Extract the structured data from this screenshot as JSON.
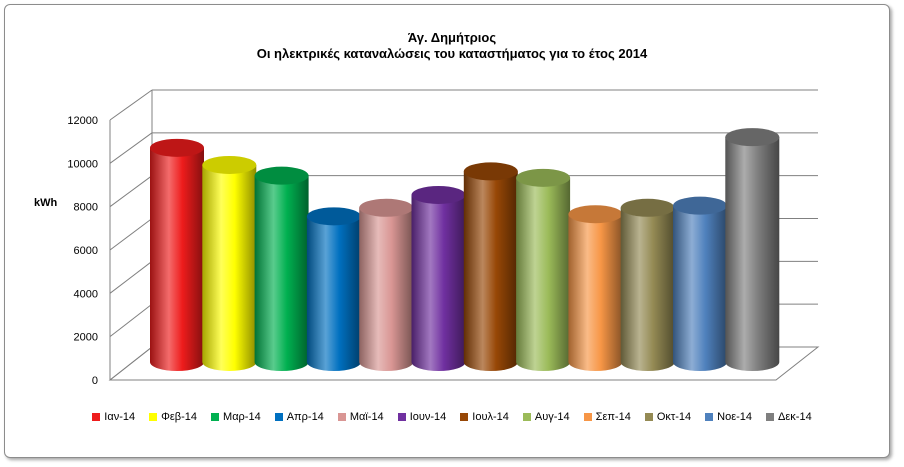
{
  "chart_data": {
    "type": "bar",
    "title": "Άγ. Δημήτριος",
    "subtitle": "Οι ηλεκτρικές καταναλώσεις του καταστήματος για το έτος 2014",
    "ylabel": "kWh",
    "xlabel": "",
    "ylim": [
      0,
      12000
    ],
    "yticks": [
      0,
      2000,
      4000,
      6000,
      8000,
      10000,
      12000
    ],
    "grid": true,
    "legend_position": "bottom",
    "style": "3d-cylinder",
    "categories": [
      "Ιαν-14",
      "Φεβ-14",
      "Μαρ-14",
      "Απρ-14",
      "Μαϊ-14",
      "Ιουν-14",
      "Ιουλ-14",
      "Αυγ-14",
      "Σεπ-14",
      "Οκτ-14",
      "Νοε-14",
      "Δεκ-14"
    ],
    "values": [
      10000,
      9200,
      8700,
      6800,
      7200,
      7800,
      8900,
      8600,
      6900,
      7200,
      7300,
      10500
    ],
    "colors": [
      "#ee1c1c",
      "#ffff00",
      "#00b050",
      "#0070c0",
      "#d99694",
      "#7030a0",
      "#974706",
      "#9bbb59",
      "#f79646",
      "#948a54",
      "#4f81bd",
      "#7f7f7f"
    ]
  }
}
